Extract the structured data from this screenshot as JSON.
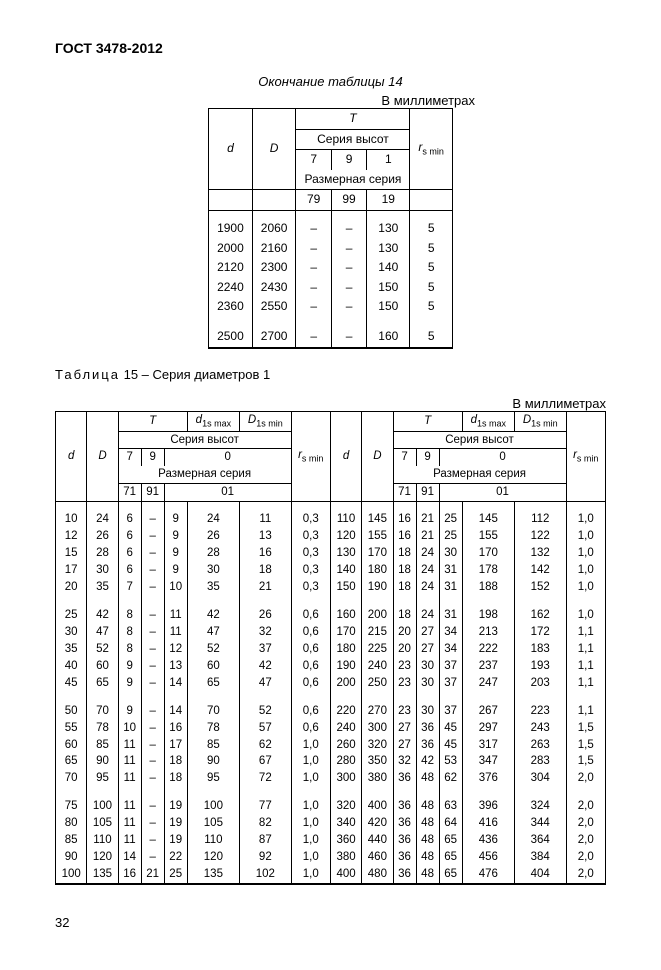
{
  "header": "ГОСТ 3478-2012",
  "table14": {
    "caption": "Окончание таблицы 14",
    "units": "В миллиметрах",
    "headers": {
      "d": "d",
      "D": "D",
      "T": "T",
      "series_h": "Серия высот",
      "c7": "7",
      "c9": "9",
      "c1": "1",
      "dim_series": "Размерная серия",
      "s79": "79",
      "s99": "99",
      "s19": "19",
      "r": "r",
      "r_sub": "s min"
    },
    "rows": [
      {
        "d": "1900",
        "D": "2060",
        "t7": "–",
        "t9": "–",
        "t1": "130",
        "r": "5"
      },
      {
        "d": "2000",
        "D": "2160",
        "t7": "–",
        "t9": "–",
        "t1": "130",
        "r": "5"
      },
      {
        "d": "2120",
        "D": "2300",
        "t7": "–",
        "t9": "–",
        "t1": "140",
        "r": "5"
      },
      {
        "d": "2240",
        "D": "2430",
        "t7": "–",
        "t9": "–",
        "t1": "150",
        "r": "5"
      },
      {
        "d": "2360",
        "D": "2550",
        "t7": "–",
        "t9": "–",
        "t1": "150",
        "r": "5"
      },
      {
        "d": "2500",
        "D": "2700",
        "t7": "–",
        "t9": "–",
        "t1": "160",
        "r": "5",
        "gap": true
      }
    ]
  },
  "table15": {
    "title_spaced": "Таблица",
    "title_rest": " 15 – Серия диаметров 1",
    "units": "В миллиметрах",
    "headers": {
      "d": "d",
      "D": "D",
      "T": "T",
      "d1": "d",
      "d1sub": "1s max",
      "D1": "D",
      "D1sub": "1s min",
      "series_h": "Серия высот",
      "c7": "7",
      "c9": "9",
      "c0": "0",
      "dim_series": "Размерная серия",
      "s71": "71",
      "s91": "91",
      "s01": "01",
      "r": "r",
      "rsub": "s min"
    },
    "rows": [
      {
        "d": "10",
        "D": "24",
        "t7": "6",
        "t9": "–",
        "t0a": "9",
        "t0b": "24",
        "t0c": "11",
        "r": "0,3",
        "d2": "110",
        "D2": "145",
        "u7": "16",
        "u9": "21",
        "u0a": "25",
        "u0b": "145",
        "u0c": "112",
        "r2": "1,0"
      },
      {
        "d": "12",
        "D": "26",
        "t7": "6",
        "t9": "–",
        "t0a": "9",
        "t0b": "26",
        "t0c": "13",
        "r": "0,3",
        "d2": "120",
        "D2": "155",
        "u7": "16",
        "u9": "21",
        "u0a": "25",
        "u0b": "155",
        "u0c": "122",
        "r2": "1,0"
      },
      {
        "d": "15",
        "D": "28",
        "t7": "6",
        "t9": "–",
        "t0a": "9",
        "t0b": "28",
        "t0c": "16",
        "r": "0,3",
        "d2": "130",
        "D2": "170",
        "u7": "18",
        "u9": "24",
        "u0a": "30",
        "u0b": "170",
        "u0c": "132",
        "r2": "1,0"
      },
      {
        "d": "17",
        "D": "30",
        "t7": "6",
        "t9": "–",
        "t0a": "9",
        "t0b": "30",
        "t0c": "18",
        "r": "0,3",
        "d2": "140",
        "D2": "180",
        "u7": "18",
        "u9": "24",
        "u0a": "31",
        "u0b": "178",
        "u0c": "142",
        "r2": "1,0"
      },
      {
        "d": "20",
        "D": "35",
        "t7": "7",
        "t9": "–",
        "t0a": "10",
        "t0b": "35",
        "t0c": "21",
        "r": "0,3",
        "d2": "150",
        "D2": "190",
        "u7": "18",
        "u9": "24",
        "u0a": "31",
        "u0b": "188",
        "u0c": "152",
        "r2": "1,0"
      },
      {
        "gap": true,
        "d": "25",
        "D": "42",
        "t7": "8",
        "t9": "–",
        "t0a": "11",
        "t0b": "42",
        "t0c": "26",
        "r": "0,6",
        "d2": "160",
        "D2": "200",
        "u7": "18",
        "u9": "24",
        "u0a": "31",
        "u0b": "198",
        "u0c": "162",
        "r2": "1,0"
      },
      {
        "d": "30",
        "D": "47",
        "t7": "8",
        "t9": "–",
        "t0a": "11",
        "t0b": "47",
        "t0c": "32",
        "r": "0,6",
        "d2": "170",
        "D2": "215",
        "u7": "20",
        "u9": "27",
        "u0a": "34",
        "u0b": "213",
        "u0c": "172",
        "r2": "1,1"
      },
      {
        "d": "35",
        "D": "52",
        "t7": "8",
        "t9": "–",
        "t0a": "12",
        "t0b": "52",
        "t0c": "37",
        "r": "0,6",
        "d2": "180",
        "D2": "225",
        "u7": "20",
        "u9": "27",
        "u0a": "34",
        "u0b": "222",
        "u0c": "183",
        "r2": "1,1"
      },
      {
        "d": "40",
        "D": "60",
        "t7": "9",
        "t9": "–",
        "t0a": "13",
        "t0b": "60",
        "t0c": "42",
        "r": "0,6",
        "d2": "190",
        "D2": "240",
        "u7": "23",
        "u9": "30",
        "u0a": "37",
        "u0b": "237",
        "u0c": "193",
        "r2": "1,1"
      },
      {
        "d": "45",
        "D": "65",
        "t7": "9",
        "t9": "–",
        "t0a": "14",
        "t0b": "65",
        "t0c": "47",
        "r": "0,6",
        "d2": "200",
        "D2": "250",
        "u7": "23",
        "u9": "30",
        "u0a": "37",
        "u0b": "247",
        "u0c": "203",
        "r2": "1,1"
      },
      {
        "gap": true,
        "d": "50",
        "D": "70",
        "t7": "9",
        "t9": "–",
        "t0a": "14",
        "t0b": "70",
        "t0c": "52",
        "r": "0,6",
        "d2": "220",
        "D2": "270",
        "u7": "23",
        "u9": "30",
        "u0a": "37",
        "u0b": "267",
        "u0c": "223",
        "r2": "1,1"
      },
      {
        "d": "55",
        "D": "78",
        "t7": "10",
        "t9": "–",
        "t0a": "16",
        "t0b": "78",
        "t0c": "57",
        "r": "0,6",
        "d2": "240",
        "D2": "300",
        "u7": "27",
        "u9": "36",
        "u0a": "45",
        "u0b": "297",
        "u0c": "243",
        "r2": "1,5"
      },
      {
        "d": "60",
        "D": "85",
        "t7": "11",
        "t9": "–",
        "t0a": "17",
        "t0b": "85",
        "t0c": "62",
        "r": "1,0",
        "d2": "260",
        "D2": "320",
        "u7": "27",
        "u9": "36",
        "u0a": "45",
        "u0b": "317",
        "u0c": "263",
        "r2": "1,5"
      },
      {
        "d": "65",
        "D": "90",
        "t7": "11",
        "t9": "–",
        "t0a": "18",
        "t0b": "90",
        "t0c": "67",
        "r": "1,0",
        "d2": "280",
        "D2": "350",
        "u7": "32",
        "u9": "42",
        "u0a": "53",
        "u0b": "347",
        "u0c": "283",
        "r2": "1,5"
      },
      {
        "d": "70",
        "D": "95",
        "t7": "11",
        "t9": "–",
        "t0a": "18",
        "t0b": "95",
        "t0c": "72",
        "r": "1,0",
        "d2": "300",
        "D2": "380",
        "u7": "36",
        "u9": "48",
        "u0a": "62",
        "u0b": "376",
        "u0c": "304",
        "r2": "2,0"
      },
      {
        "gap": true,
        "d": "75",
        "D": "100",
        "t7": "11",
        "t9": "–",
        "t0a": "19",
        "t0b": "100",
        "t0c": "77",
        "r": "1,0",
        "d2": "320",
        "D2": "400",
        "u7": "36",
        "u9": "48",
        "u0a": "63",
        "u0b": "396",
        "u0c": "324",
        "r2": "2,0"
      },
      {
        "d": "80",
        "D": "105",
        "t7": "11",
        "t9": "–",
        "t0a": "19",
        "t0b": "105",
        "t0c": "82",
        "r": "1,0",
        "d2": "340",
        "D2": "420",
        "u7": "36",
        "u9": "48",
        "u0a": "64",
        "u0b": "416",
        "u0c": "344",
        "r2": "2,0"
      },
      {
        "d": "85",
        "D": "110",
        "t7": "11",
        "t9": "–",
        "t0a": "19",
        "t0b": "110",
        "t0c": "87",
        "r": "1,0",
        "d2": "360",
        "D2": "440",
        "u7": "36",
        "u9": "48",
        "u0a": "65",
        "u0b": "436",
        "u0c": "364",
        "r2": "2,0"
      },
      {
        "d": "90",
        "D": "120",
        "t7": "14",
        "t9": "–",
        "t0a": "22",
        "t0b": "120",
        "t0c": "92",
        "r": "1,0",
        "d2": "380",
        "D2": "460",
        "u7": "36",
        "u9": "48",
        "u0a": "65",
        "u0b": "456",
        "u0c": "384",
        "r2": "2,0"
      },
      {
        "d": "100",
        "D": "135",
        "t7": "16",
        "t9": "21",
        "t0a": "25",
        "t0b": "135",
        "t0c": "102",
        "r": "1,0",
        "d2": "400",
        "D2": "480",
        "u7": "36",
        "u9": "48",
        "u0a": "65",
        "u0b": "476",
        "u0c": "404",
        "r2": "2,0"
      }
    ]
  },
  "page_num": "32"
}
